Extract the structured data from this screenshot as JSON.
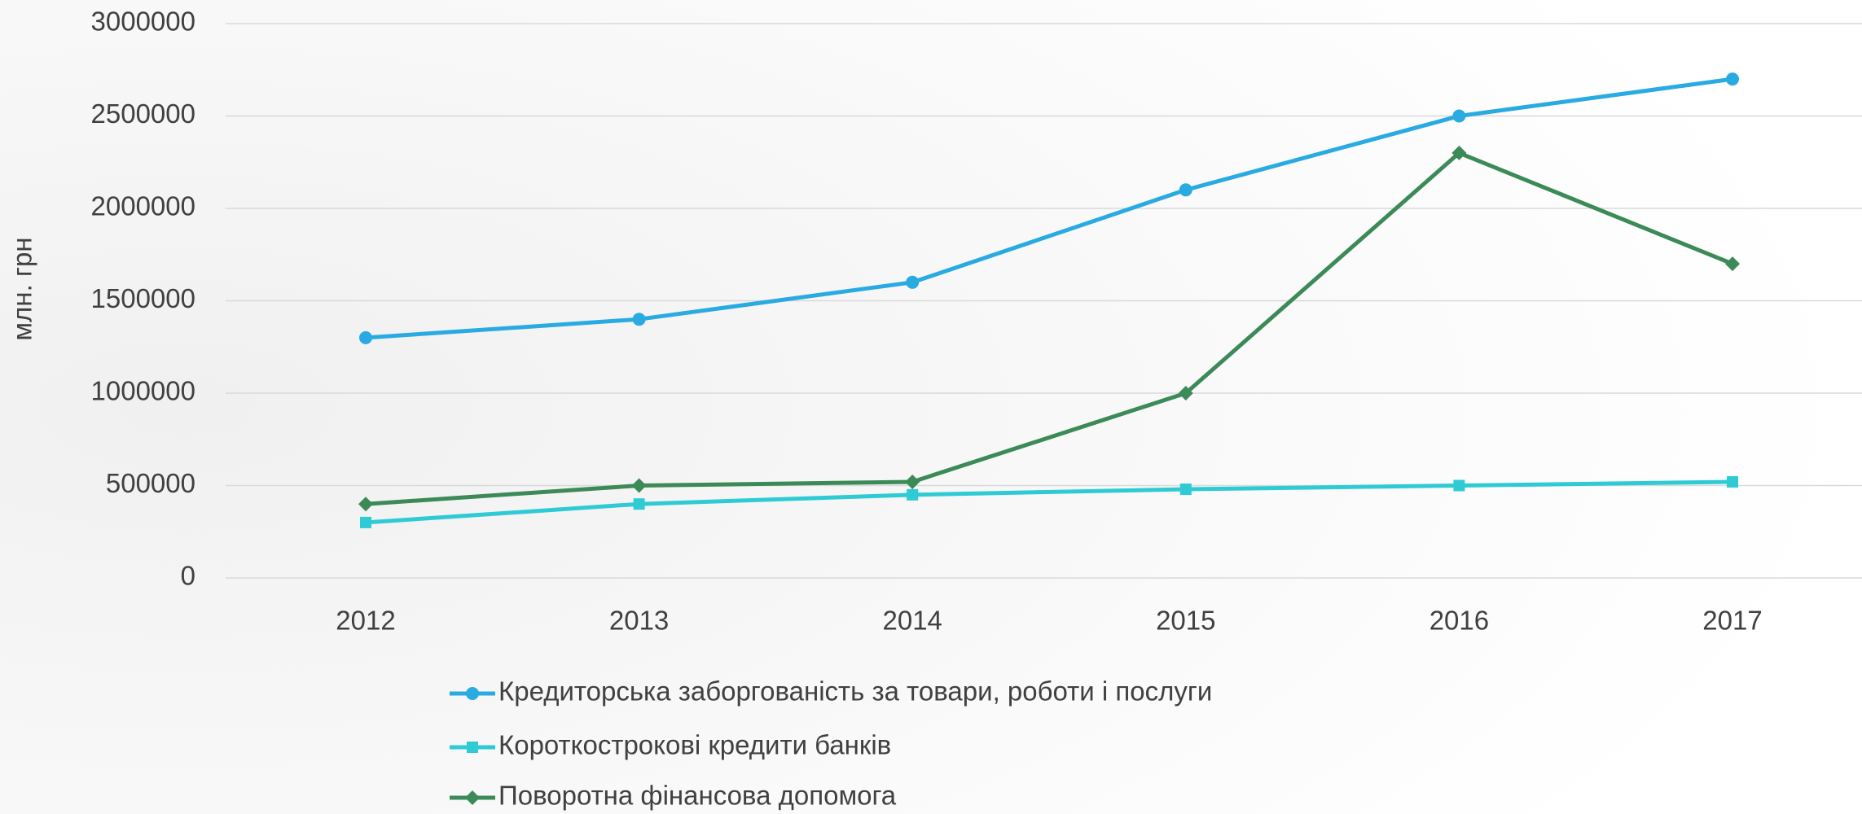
{
  "chart_data": {
    "type": "line",
    "y_label": "млн. грн",
    "categories": [
      "2012",
      "2013",
      "2014",
      "2015",
      "2016",
      "2017"
    ],
    "series": [
      {
        "name": "Кредиторська заборгованість за товари, роботи і послуги",
        "color": "#29abe2",
        "marker": "circle",
        "values": [
          1300000,
          1400000,
          1600000,
          2100000,
          2500000,
          2700000
        ]
      },
      {
        "name": "Короткострокові кредити банків",
        "color": "#2fcbd5",
        "marker": "square",
        "values": [
          300000,
          400000,
          450000,
          480000,
          500000,
          520000
        ]
      },
      {
        "name": "Поворотна фінансова допомога",
        "color": "#3b8a57",
        "marker": "diamond",
        "values": [
          400000,
          500000,
          520000,
          1000000,
          2300000,
          1700000
        ]
      }
    ],
    "ylim": [
      0,
      3000000
    ],
    "yticks": [
      0,
      500000,
      1000000,
      1500000,
      2000000,
      2500000,
      3000000
    ],
    "grid": true,
    "legend": "bottom"
  }
}
